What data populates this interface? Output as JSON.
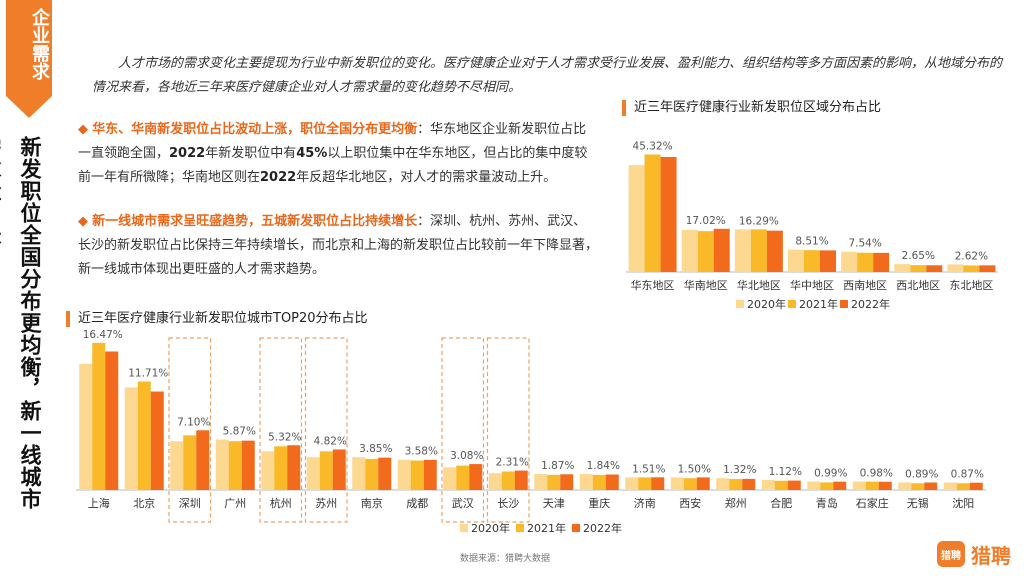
{
  "badge": "企业需求",
  "vertical_title": "新发职位全国分布更均衡，新一线城市需求量增长",
  "intro": "人才市场的需求变化主要提现为行业中新发职位的变化。医疗健康企业对于人才需求受行业发展、盈利能力、组织结构等多方面因素的影响，从地域分布的情况来看，各地近三年来医疗健康企业对人才需求量的变化趋势不尽相同。",
  "bullet1": {
    "diamond": "◆",
    "head": "华东、华南新发职位占比波动上涨，职位全国分布更均衡",
    "t1": "：华东地区企业新发职位占比一直领跑全国，",
    "b1": "2022",
    "t2": "年新发职位中有",
    "b2": "45%",
    "t3": "以上职位集中在华东地区，但占比的集中度较前一年有所微降；华南地区则在",
    "b3": "2022",
    "t4": "年反超华北地区，对人才的需求量波动上升。"
  },
  "bullet2": {
    "diamond": "◆",
    "head": "新一线城市需求呈旺盛趋势，五城新发职位占比持续增长",
    "t1": "：深圳、杭州、苏州、武汉、长沙的新发职位占比保持三年持续增长，而北京和上海的新发职位占比较前一年下降显著，新一线城市体现出更旺盛的人才需求趋势。"
  },
  "source": "数据来源：猎聘大数据",
  "logo": {
    "icon_text": "猎聘",
    "name": "猎聘"
  },
  "colors": {
    "accent": "#f07d2a",
    "y2020": "#fcd891",
    "y2021": "#f9b928",
    "y2022": "#f26a1b",
    "dash": "#f0a060"
  },
  "chart_data": [
    {
      "type": "bar",
      "title": "近三年医疗健康行业新发职位区域分布占比",
      "categories": [
        "华东地区",
        "华南地区",
        "华北地区",
        "华中地区",
        "西南地区",
        "西北地区",
        "东北地区"
      ],
      "series": [
        {
          "name": "2020年",
          "values": [
            42.1,
            16.6,
            16.8,
            8.8,
            8.0,
            3.1,
            3.0
          ]
        },
        {
          "name": "2021年",
          "values": [
            46.3,
            16.1,
            16.8,
            8.6,
            7.6,
            2.7,
            2.6
          ]
        },
        {
          "name": "2022年",
          "values": [
            45.32,
            17.02,
            16.29,
            8.51,
            7.54,
            2.65,
            2.62
          ]
        }
      ],
      "data_labels": [
        "45.32%",
        "17.02%",
        "16.29%",
        "8.51%",
        "7.54%",
        "2.65%",
        "2.62%"
      ],
      "legend": "bottom"
    },
    {
      "type": "bar",
      "title": "近三年医疗健康行业新发职位城市TOP20分布占比",
      "categories": [
        "上海",
        "北京",
        "深圳",
        "广州",
        "杭州",
        "苏州",
        "南京",
        "成都",
        "武汉",
        "长沙",
        "天津",
        "重庆",
        "济南",
        "西安",
        "郑州",
        "合肥",
        "青岛",
        "石家庄",
        "无锡",
        "沈阳"
      ],
      "highlighted": [
        "深圳",
        "杭州",
        "苏州",
        "武汉",
        "长沙"
      ],
      "series": [
        {
          "name": "2020年",
          "values": [
            15.0,
            12.2,
            5.8,
            6.0,
            4.6,
            3.9,
            3.9,
            3.6,
            2.7,
            2.0,
            1.9,
            1.9,
            1.5,
            1.5,
            1.4,
            1.2,
            1.0,
            1.0,
            0.9,
            0.9
          ]
        },
        {
          "name": "2021年",
          "values": [
            17.5,
            12.9,
            6.5,
            5.8,
            5.2,
            4.6,
            3.7,
            3.5,
            2.9,
            2.2,
            1.8,
            1.8,
            1.5,
            1.4,
            1.3,
            1.1,
            0.9,
            1.0,
            0.8,
            0.8
          ]
        },
        {
          "name": "2022年",
          "values": [
            16.47,
            11.71,
            7.1,
            5.87,
            5.32,
            4.82,
            3.85,
            3.58,
            3.08,
            2.31,
            1.87,
            1.84,
            1.51,
            1.5,
            1.32,
            1.12,
            0.99,
            0.98,
            0.89,
            0.87
          ]
        }
      ],
      "data_labels": [
        "16.47%",
        "11.71%",
        "7.10%",
        "5.87%",
        "5.32%",
        "4.82%",
        "3.85%",
        "3.58%",
        "3.08%",
        "2.31%",
        "1.87%",
        "1.84%",
        "1.51%",
        "1.50%",
        "1.32%",
        "1.12%",
        "0.99%",
        "0.98%",
        "0.89%",
        "0.87%"
      ],
      "legend": "bottom"
    }
  ]
}
